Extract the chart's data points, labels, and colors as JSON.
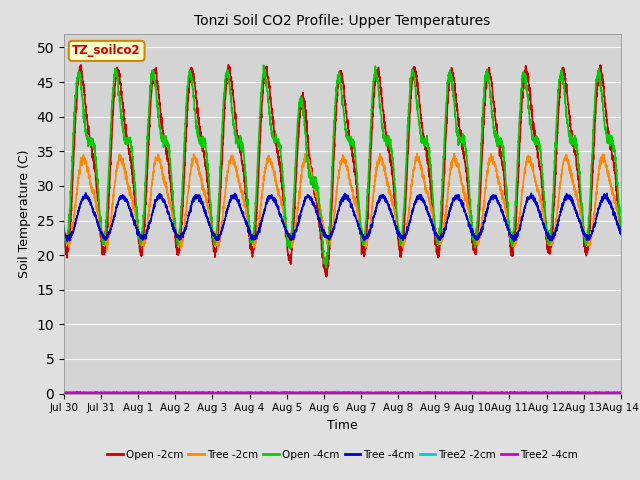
{
  "title": "Tonzi Soil CO2 Profile: Upper Temperatures",
  "xlabel": "Time",
  "ylabel": "Soil Temperature (C)",
  "ylim": [
    0,
    52
  ],
  "yticks": [
    0,
    5,
    10,
    15,
    20,
    25,
    30,
    35,
    40,
    45,
    50
  ],
  "fig_bg_color": "#e0e0e0",
  "plot_bg_color": "#d4d4d4",
  "watermark_text": "TZ_soilco2",
  "watermark_bg": "#ffffcc",
  "watermark_border": "#cc8800",
  "series": [
    {
      "label": "Open -2cm",
      "color": "#cc0000",
      "lw": 1.2
    },
    {
      "label": "Tree -2cm",
      "color": "#ff8800",
      "lw": 1.2
    },
    {
      "label": "Open -4cm",
      "color": "#00cc00",
      "lw": 1.2
    },
    {
      "label": "Tree -4cm",
      "color": "#0000cc",
      "lw": 1.2
    },
    {
      "label": "Tree2 -2cm",
      "color": "#00cccc",
      "lw": 1.2
    },
    {
      "label": "Tree2 -4cm",
      "color": "#cc00cc",
      "lw": 1.2
    }
  ],
  "x_start_day": 0,
  "x_end_day": 15,
  "n_points": 3000,
  "xtick_labels": [
    "Jul 30",
    "Jul 31",
    "Aug 1",
    "Aug 2",
    "Aug 3",
    "Aug 4",
    "Aug 5",
    "Aug 6",
    "Aug 7",
    "Aug 8",
    "Aug 9",
    "Aug 10",
    "Aug 11",
    "Aug 12",
    "Aug 13",
    "Aug 14"
  ],
  "xtick_positions": [
    0,
    1,
    2,
    3,
    4,
    5,
    6,
    7,
    8,
    9,
    10,
    11,
    12,
    13,
    14,
    15
  ]
}
